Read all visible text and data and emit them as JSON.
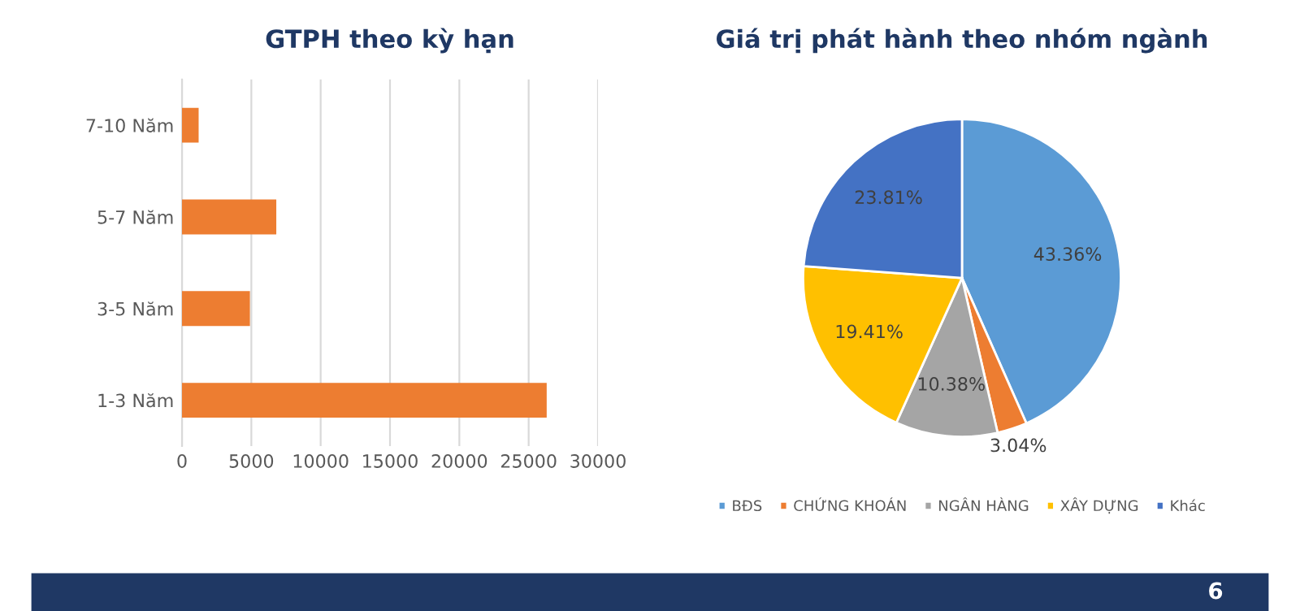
{
  "chart_data": [
    {
      "type": "bar",
      "orientation": "horizontal",
      "title": "GTPH theo kỳ hạn",
      "categories": [
        "7-10 Năm",
        "5-7 Năm",
        "3-5 Năm",
        "1-3 Năm"
      ],
      "values": [
        1200,
        6800,
        4900,
        26300
      ],
      "color": "#ed7d31",
      "xlim": [
        0,
        30000
      ],
      "xticks": [
        0,
        5000,
        10000,
        15000,
        20000,
        25000,
        30000
      ],
      "grid": "x"
    },
    {
      "type": "pie",
      "title": "Giá trị phát hành theo nhóm ngành",
      "categories": [
        "BĐS",
        "CHỨNG KHOÁN",
        "NGÂN HÀNG",
        "XÂY DỰNG",
        "Khác"
      ],
      "values": [
        43.36,
        3.04,
        10.38,
        19.41,
        23.81
      ],
      "value_labels": [
        "43.36%",
        "3.04%",
        "10.38%",
        "19.41%",
        "23.81%"
      ],
      "colors": [
        "#5b9bd5",
        "#ed7d31",
        "#a5a5a5",
        "#ffc000",
        "#4472c4"
      ],
      "legend": "bottom",
      "annotations": [
        "6"
      ]
    }
  ]
}
